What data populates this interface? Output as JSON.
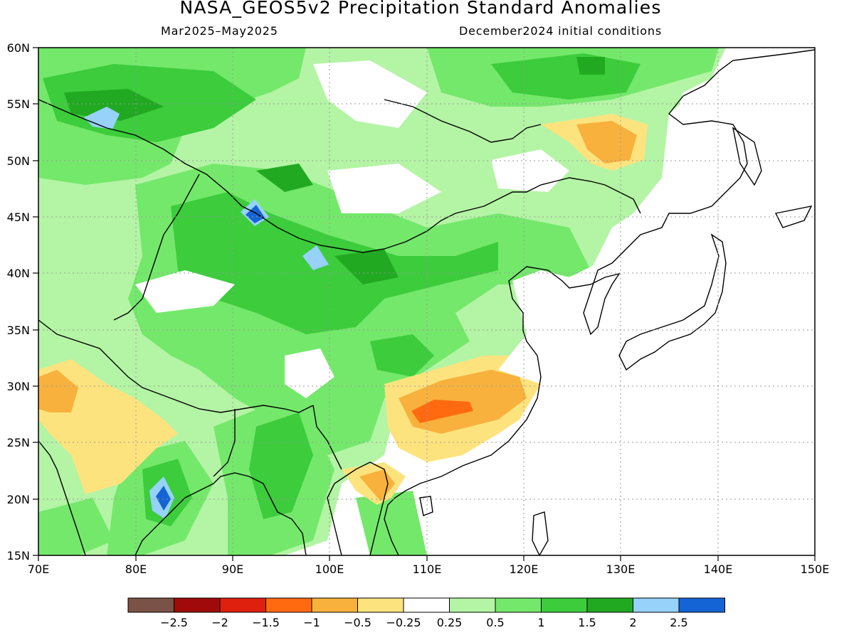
{
  "title": "NASA_GEOS5v2 Precipitation Standard Anomalies",
  "subtitle_left": "Mar2025–May2025",
  "subtitle_right": "December2024 initial conditions",
  "map": {
    "lon_range": [
      70,
      150
    ],
    "lat_range": [
      15,
      60
    ],
    "lon_ticks": [
      "70E",
      "80E",
      "90E",
      "100E",
      "110E",
      "120E",
      "130E",
      "140E",
      "150E"
    ],
    "lat_ticks": [
      "60N",
      "55N",
      "50N",
      "45N",
      "40N",
      "35N",
      "30N",
      "25N",
      "20N",
      "15N"
    ],
    "grid": "dotted"
  },
  "colorbar": {
    "colors": [
      "#7a5247",
      "#a00a0a",
      "#e0200e",
      "#ff6a10",
      "#f7b13c",
      "#fde37e",
      "#ffffff",
      "#b4f4a5",
      "#74e86b",
      "#3ccc3c",
      "#22a922",
      "#96d2fa",
      "#1564d6"
    ],
    "labels": [
      "−2.5",
      "−2",
      "−1.5",
      "−1",
      "−0.5",
      "−0.25",
      "0.25",
      "0.5",
      "1",
      "1.5",
      "2",
      "2.5"
    ]
  }
}
